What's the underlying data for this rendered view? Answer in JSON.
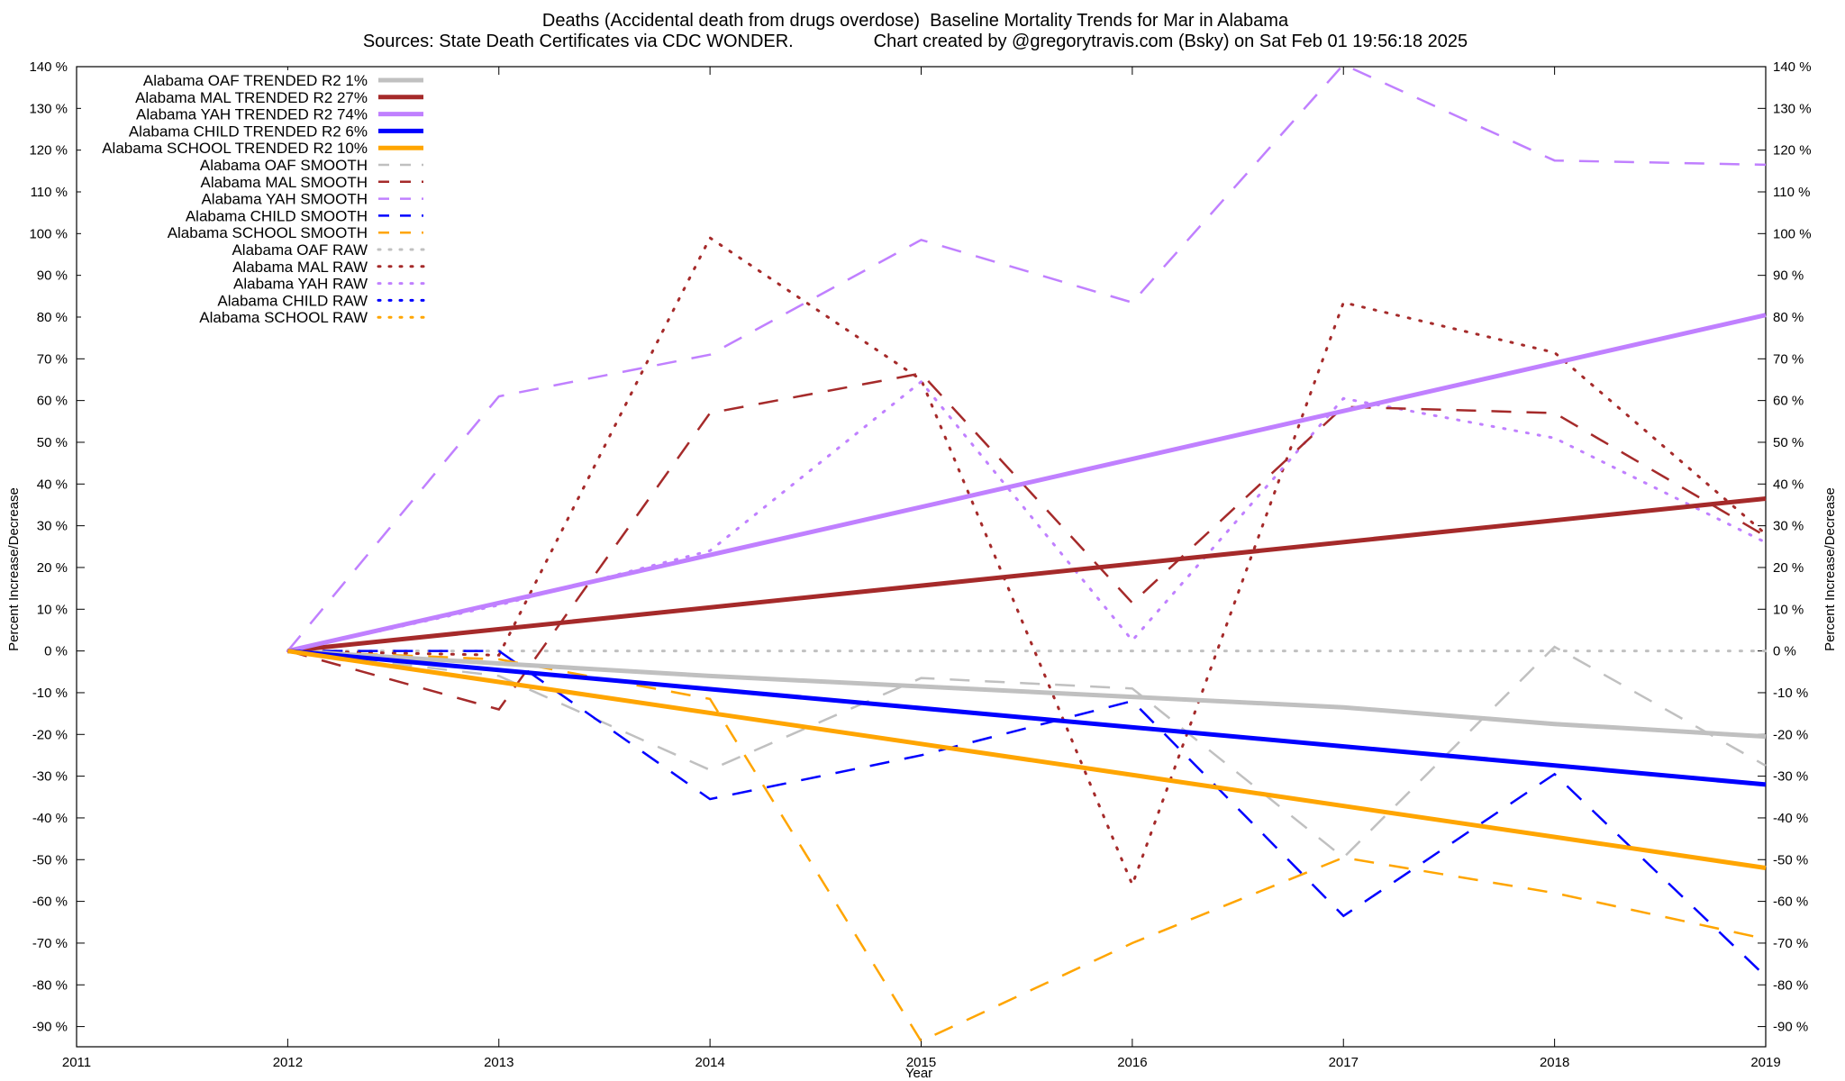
{
  "title_line1": "Deaths (Accidental death from drugs overdose)  Baseline Mortality Trends for Mar in Alabama",
  "title_line2": "Sources: State Death Certificates via CDC WONDER.                Chart created by @gregorytravis.com (Bsky) on Sat Feb 01 19:56:18 2025",
  "chart_data": {
    "type": "line",
    "xlabel": "Year",
    "ylabel": "Percent Increase/Decrease",
    "y2label": "Percent Increase/Decrease",
    "xlim": [
      2011,
      2019
    ],
    "ylim": [
      -95,
      140
    ],
    "x_ticks": [
      2011,
      2012,
      2013,
      2014,
      2015,
      2016,
      2017,
      2018,
      2019
    ],
    "y_ticks": [
      140,
      130,
      120,
      110,
      100,
      90,
      80,
      70,
      60,
      50,
      40,
      30,
      20,
      10,
      0,
      -10,
      -20,
      -30,
      -40,
      -50,
      -60,
      -70,
      -80,
      -90
    ],
    "y_tick_suffix": " %",
    "legend_position": "top-left",
    "grid": false,
    "series": [
      {
        "name": "Alabama OAF TRENDED R2   1%",
        "color": "#c0c0c0",
        "style": "solid",
        "x": [
          2012,
          2013,
          2014,
          2015,
          2016,
          2017,
          2018,
          2019
        ],
        "values": [
          0,
          -3,
          -6,
          -8.5,
          -11,
          -13.5,
          -17.5,
          -20.5
        ]
      },
      {
        "name": "Alabama MAL TRENDED R2  27%",
        "color": "#a52a2a",
        "style": "solid",
        "x": [
          2012,
          2019
        ],
        "values": [
          0,
          36.5
        ]
      },
      {
        "name": "Alabama YAH TRENDED R2  74%",
        "color": "#c080ff",
        "style": "solid",
        "x": [
          2012,
          2019
        ],
        "values": [
          0,
          80.5
        ]
      },
      {
        "name": "Alabama CHILD TRENDED R2   6%",
        "color": "#0000ff",
        "style": "solid",
        "x": [
          2012,
          2019
        ],
        "values": [
          0,
          -32
        ]
      },
      {
        "name": "Alabama SCHOOL TRENDED R2  10%",
        "color": "#ffa500",
        "style": "solid",
        "x": [
          2012,
          2019
        ],
        "values": [
          0,
          -52
        ]
      },
      {
        "name": "Alabama OAF SMOOTH",
        "color": "#c0c0c0",
        "style": "dashed",
        "x": [
          2012,
          2013,
          2014,
          2015,
          2016,
          2017,
          2018,
          2019
        ],
        "values": [
          0,
          -6,
          -28.5,
          -6.5,
          -9,
          -49.5,
          1,
          -27.5
        ]
      },
      {
        "name": "Alabama MAL SMOOTH",
        "color": "#a52a2a",
        "style": "dashed",
        "x": [
          2012,
          2013,
          2014,
          2015,
          2016,
          2017,
          2018,
          2019
        ],
        "values": [
          0,
          -14,
          57,
          66.5,
          11.5,
          58.5,
          57,
          27.5
        ]
      },
      {
        "name": "Alabama YAH SMOOTH",
        "color": "#c080ff",
        "style": "dashed",
        "x": [
          2012,
          2013,
          2014,
          2015,
          2016,
          2017,
          2018,
          2019
        ],
        "values": [
          0,
          61,
          71,
          98.5,
          83.5,
          140.5,
          117.5,
          116.5
        ]
      },
      {
        "name": "Alabama CHILD SMOOTH",
        "color": "#0000ff",
        "style": "dashed",
        "x": [
          2012,
          2013,
          2014,
          2015,
          2016,
          2017,
          2018,
          2019
        ],
        "values": [
          0,
          0,
          -35.5,
          -25,
          -12,
          -63.5,
          -29.5,
          -78
        ]
      },
      {
        "name": "Alabama SCHOOL SMOOTH",
        "color": "#ffa500",
        "style": "dashed",
        "x": [
          2012,
          2013,
          2014,
          2015,
          2016,
          2017,
          2018,
          2019
        ],
        "values": [
          0,
          -2,
          -11.5,
          -93.5,
          -70,
          -49.5,
          -58,
          -69
        ]
      },
      {
        "name": "Alabama OAF RAW",
        "color": "#c0c0c0",
        "style": "dotted",
        "x": [
          2012,
          2013,
          2014,
          2015,
          2016,
          2017,
          2018,
          2019
        ],
        "values": [
          0,
          0,
          0,
          0,
          0,
          0,
          0,
          0
        ]
      },
      {
        "name": "Alabama MAL RAW",
        "color": "#a52a2a",
        "style": "dotted",
        "x": [
          2012,
          2013,
          2014,
          2015,
          2016,
          2017,
          2018,
          2019
        ],
        "values": [
          0,
          -1,
          99,
          65,
          -56,
          83.5,
          71.5,
          28
        ]
      },
      {
        "name": "Alabama YAH RAW",
        "color": "#c080ff",
        "style": "dotted",
        "x": [
          2012,
          2013,
          2014,
          2015,
          2016,
          2017,
          2018,
          2019
        ],
        "values": [
          0,
          11,
          24,
          64.5,
          2.5,
          60.5,
          51,
          26
        ]
      },
      {
        "name": "Alabama CHILD RAW",
        "color": "#0000ff",
        "style": "dotted",
        "x": [],
        "values": []
      },
      {
        "name": "Alabama SCHOOL RAW",
        "color": "#ffa500",
        "style": "dotted",
        "x": [],
        "values": []
      }
    ]
  }
}
